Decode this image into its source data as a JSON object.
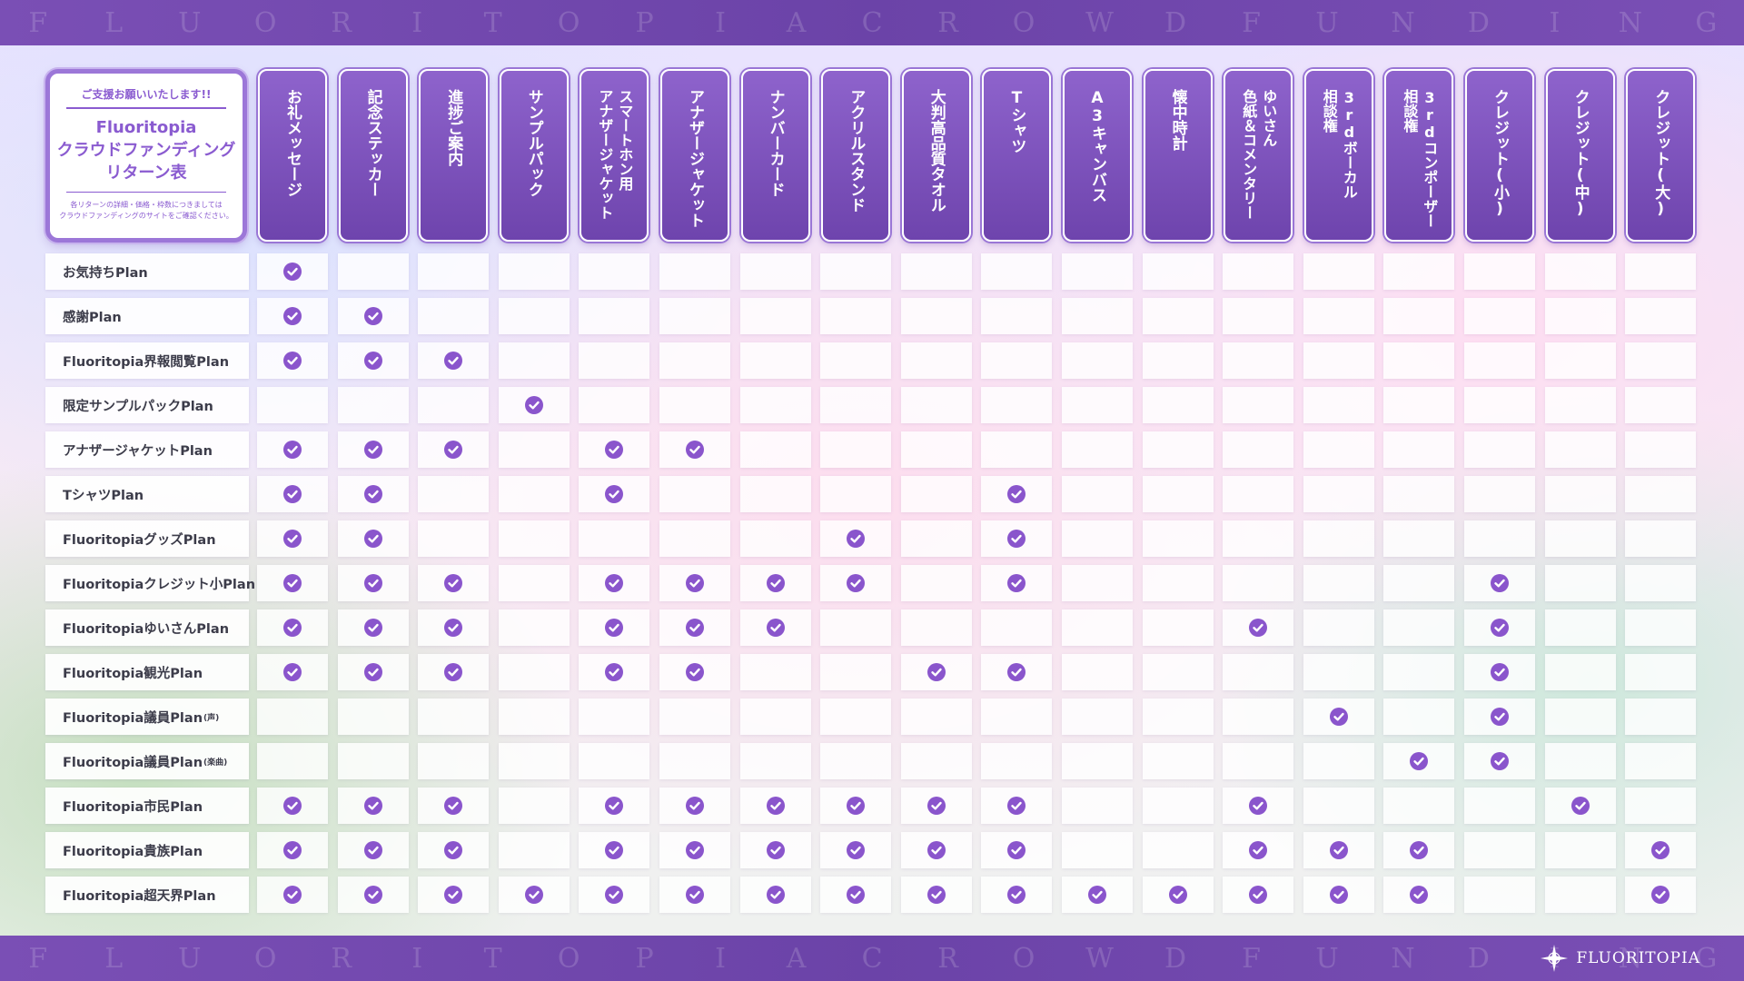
{
  "banner": {
    "letters": [
      "F",
      "L",
      "U",
      "O",
      "R",
      "I",
      "T",
      "O",
      "P",
      "I",
      "A",
      "C",
      "R",
      "O",
      "W",
      "D",
      "F",
      "U",
      "N",
      "D",
      "I",
      "N",
      "G"
    ]
  },
  "brand": {
    "name": "FLUORITOPIA",
    "icon": "sparkle-star-icon"
  },
  "title_card": {
    "tagline": "ご支援お願いいたします!!",
    "title_line1": "Fluoritopia",
    "title_line2": "クラウドファンディング",
    "title_line3": "リターン表",
    "note_line1": "各リターンの詳細・価格・枠数につきましては",
    "note_line2": "クラウドファンディングのサイトをご確認ください。"
  },
  "columns": [
    "お礼メッセージ",
    "記念ステッカー",
    "進捗ご案内",
    "サンプルパック",
    "スマートホン用\nアナザージャケット",
    "アナザージャケット",
    "ナンバーカード",
    "アクリルスタンド",
    "大判高品質タオル",
    "Tシャツ",
    "A3キャンバス",
    "懐中時計",
    "ゆいさん\n色紙＆コメンタリー",
    "3rdボーカル\n相談権",
    "3rdコンポーザー\n相談権",
    "クレジット(小)",
    "クレジット(中)",
    "クレジット(大)"
  ],
  "plans": [
    {
      "name": "お気持ちPlan",
      "suffix": "",
      "returns": [
        1,
        0,
        0,
        0,
        0,
        0,
        0,
        0,
        0,
        0,
        0,
        0,
        0,
        0,
        0,
        0,
        0,
        0
      ]
    },
    {
      "name": "感謝Plan",
      "suffix": "",
      "returns": [
        1,
        1,
        0,
        0,
        0,
        0,
        0,
        0,
        0,
        0,
        0,
        0,
        0,
        0,
        0,
        0,
        0,
        0
      ]
    },
    {
      "name": "Fluoritopia界報閲覧Plan",
      "suffix": "",
      "returns": [
        1,
        1,
        1,
        0,
        0,
        0,
        0,
        0,
        0,
        0,
        0,
        0,
        0,
        0,
        0,
        0,
        0,
        0
      ]
    },
    {
      "name": "限定サンプルパックPlan",
      "suffix": "",
      "returns": [
        0,
        0,
        0,
        1,
        0,
        0,
        0,
        0,
        0,
        0,
        0,
        0,
        0,
        0,
        0,
        0,
        0,
        0
      ]
    },
    {
      "name": "アナザージャケットPlan",
      "suffix": "",
      "returns": [
        1,
        1,
        1,
        0,
        1,
        1,
        0,
        0,
        0,
        0,
        0,
        0,
        0,
        0,
        0,
        0,
        0,
        0
      ]
    },
    {
      "name": "TシャツPlan",
      "suffix": "",
      "returns": [
        1,
        1,
        0,
        0,
        1,
        0,
        0,
        0,
        0,
        1,
        0,
        0,
        0,
        0,
        0,
        0,
        0,
        0
      ]
    },
    {
      "name": "FluoritopiaグッズPlan",
      "suffix": "",
      "returns": [
        1,
        1,
        0,
        0,
        0,
        0,
        0,
        1,
        0,
        1,
        0,
        0,
        0,
        0,
        0,
        0,
        0,
        0
      ]
    },
    {
      "name": "Fluoritopiaクレジット小Plan",
      "suffix": "",
      "returns": [
        1,
        1,
        1,
        0,
        1,
        1,
        1,
        1,
        0,
        1,
        0,
        0,
        0,
        0,
        0,
        1,
        0,
        0
      ]
    },
    {
      "name": "FluoritopiaゆいさんPlan",
      "suffix": "",
      "returns": [
        1,
        1,
        1,
        0,
        1,
        1,
        1,
        0,
        0,
        0,
        0,
        0,
        1,
        0,
        0,
        1,
        0,
        0
      ]
    },
    {
      "name": "Fluoritopia観光Plan",
      "suffix": "",
      "returns": [
        1,
        1,
        1,
        0,
        1,
        1,
        0,
        0,
        1,
        1,
        0,
        0,
        0,
        0,
        0,
        1,
        0,
        0
      ]
    },
    {
      "name": "Fluoritopia議員Plan",
      "suffix": "(声)",
      "returns": [
        0,
        0,
        0,
        0,
        0,
        0,
        0,
        0,
        0,
        0,
        0,
        0,
        0,
        1,
        0,
        1,
        0,
        0
      ]
    },
    {
      "name": "Fluoritopia議員Plan",
      "suffix": "(楽曲)",
      "returns": [
        0,
        0,
        0,
        0,
        0,
        0,
        0,
        0,
        0,
        0,
        0,
        0,
        0,
        0,
        1,
        1,
        0,
        0
      ]
    },
    {
      "name": "Fluoritopia市民Plan",
      "suffix": "",
      "returns": [
        1,
        1,
        1,
        0,
        1,
        1,
        1,
        1,
        1,
        1,
        0,
        0,
        1,
        0,
        0,
        0,
        1,
        0
      ]
    },
    {
      "name": "Fluoritopia貴族Plan",
      "suffix": "",
      "returns": [
        1,
        1,
        1,
        0,
        1,
        1,
        1,
        1,
        1,
        1,
        0,
        0,
        1,
        1,
        1,
        0,
        0,
        1
      ]
    },
    {
      "name": "Fluoritopia超天界Plan",
      "suffix": "",
      "returns": [
        1,
        1,
        1,
        1,
        1,
        1,
        1,
        1,
        1,
        1,
        1,
        1,
        1,
        1,
        1,
        0,
        0,
        1
      ]
    }
  ],
  "colors": {
    "accent": "#8a55cc",
    "header_bg": "#7b50ba",
    "band": "#6f45aa"
  },
  "icons": {
    "included": "check-circle-icon"
  }
}
